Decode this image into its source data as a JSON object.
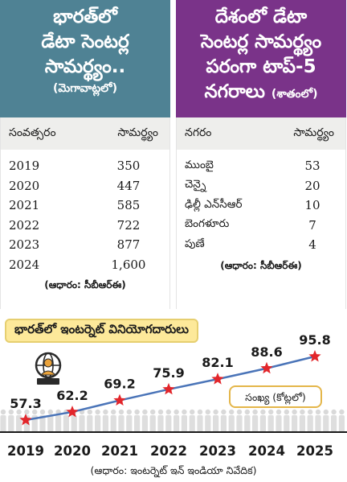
{
  "left_panel": {
    "title_lines": [
      "భారత్‌లో",
      "డేటా సెంటర్ల",
      "సామర్థ్యం.."
    ],
    "unit": "(మెగావాట్లలో)",
    "columns": [
      "సంవత్సరం",
      "సామర్థ్యం"
    ],
    "rows": [
      {
        "year": "2019",
        "value": "350"
      },
      {
        "year": "2020",
        "value": "447"
      },
      {
        "year": "2021",
        "value": "585"
      },
      {
        "year": "2022",
        "value": "722"
      },
      {
        "year": "2023",
        "value": "877"
      },
      {
        "year": "2024",
        "value": "1,600"
      }
    ],
    "source": "(ఆధారం: సీబీఆర్ఈ)"
  },
  "right_panel": {
    "title_lines": [
      "దేశంలో డేటా",
      "సెంటర్ల సామర్థ్యం",
      "పరంగా టాప్-5"
    ],
    "title_last_line": "నగరాలు",
    "unit": "(శాతంలో)",
    "columns": [
      "నగరం",
      "సామర్థ్యం"
    ],
    "rows": [
      {
        "city": "ముంబై",
        "value": "53"
      },
      {
        "city": "చెన్నై",
        "value": "20"
      },
      {
        "city": "ఢిల్లీ ఎన్‌సీఆర్",
        "value": "10"
      },
      {
        "city": "బెంగళూరు",
        "value": "7"
      },
      {
        "city": "పుణే",
        "value": "4"
      }
    ],
    "source": "(ఆధారం: సీబీఆర్ఈ)"
  },
  "chart_data": {
    "type": "line",
    "title": "భారత్‌లో ఇంటర్నెట్ వినియోగదారులు",
    "x": [
      "2019",
      "2020",
      "2021",
      "2022",
      "2023",
      "2024",
      "2025"
    ],
    "series": [
      {
        "name": "సంఖ్య (కోట్లలో)",
        "values": [
          57.3,
          62.2,
          69.2,
          75.9,
          82.1,
          88.6,
          95.8
        ]
      }
    ],
    "value_labels": [
      "57.3",
      "62.2",
      "69.2",
      "75.9",
      "82.1",
      "88.6",
      "95.8"
    ],
    "legend": "సంఖ్య (కోట్లలో)",
    "source": "(ఆధారం: ఇంటర్నెట్ ఇన్ ఇండియా నివేదిక)",
    "line_color": "#4a74b8",
    "marker_color": "#e2262b"
  },
  "icons": [
    "globe-user-icon"
  ],
  "colors": {
    "left_header": "#4f8294",
    "right_header": "#7a3389",
    "title_box": "#fde99a"
  }
}
